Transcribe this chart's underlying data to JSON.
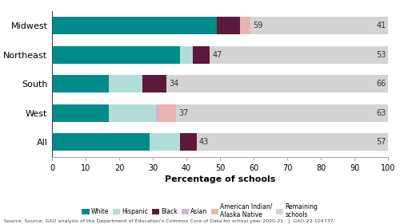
{
  "categories": [
    "Midwest",
    "Northeast",
    "South",
    "West",
    "All"
  ],
  "segments": {
    "White": [
      49,
      38,
      17,
      17,
      29
    ],
    "Hispanic": [
      0,
      4,
      10,
      14,
      9
    ],
    "Black": [
      7,
      5,
      7,
      0,
      5
    ],
    "Asian": [
      0,
      0,
      0,
      1,
      0
    ],
    "AmIndian": [
      3,
      0,
      0,
      5,
      0
    ],
    "Remaining": [
      41,
      53,
      66,
      63,
      57
    ]
  },
  "labels_at": [
    59,
    47,
    34,
    37,
    43
  ],
  "remaining_labels": [
    41,
    53,
    66,
    63,
    57
  ],
  "colors": {
    "White": "#008b8b",
    "Hispanic": "#b2dcd8",
    "Black": "#5c1a3a",
    "Asian": "#cdb5cd",
    "AmIndian": "#e8b4b0",
    "Remaining": "#d3d3d3"
  },
  "legend_labels": [
    "White",
    "Hispanic",
    "Black",
    "Asian",
    "American Indian/\nAlaska Native",
    "Remaining\nschools"
  ],
  "xlabel": "Percentage of schools",
  "source": "Source: Source: GAO analysis of the Department of Education's Common Core of Data for school year 2020-21.  |  GAO-22-104737.",
  "xlim": [
    0,
    100
  ],
  "xticks": [
    0,
    10,
    20,
    30,
    40,
    50,
    60,
    70,
    80,
    90,
    100
  ]
}
